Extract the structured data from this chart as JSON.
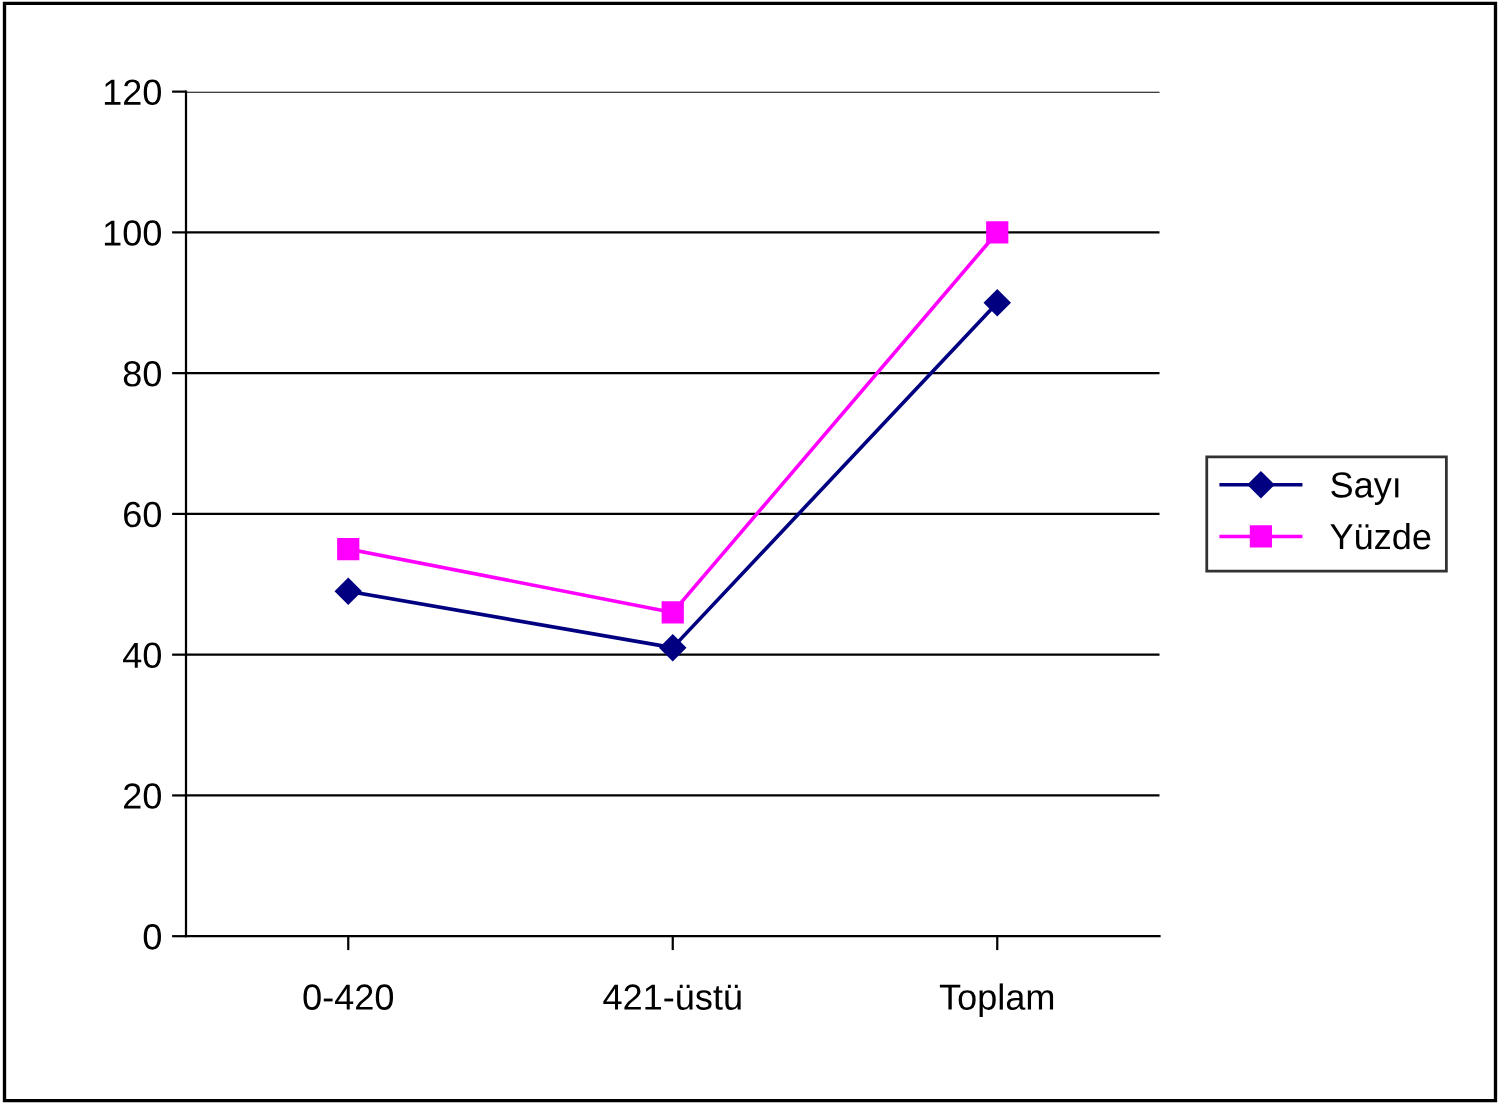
{
  "chart_data": {
    "type": "line",
    "categories": [
      "0-420",
      "421-üstü",
      "Toplam"
    ],
    "series": [
      {
        "name": "Sayı",
        "color": "#000080",
        "values": [
          49,
          41,
          90
        ],
        "marker": "diamond"
      },
      {
        "name": "Yüzde",
        "color": "#ff00ff",
        "values": [
          55,
          46,
          100
        ],
        "marker": "square"
      }
    ],
    "ylim": [
      0,
      120
    ],
    "yticks": [
      0,
      20,
      40,
      60,
      80,
      100,
      120
    ],
    "grid": "y",
    "legend": "right",
    "line_style": "solid"
  }
}
